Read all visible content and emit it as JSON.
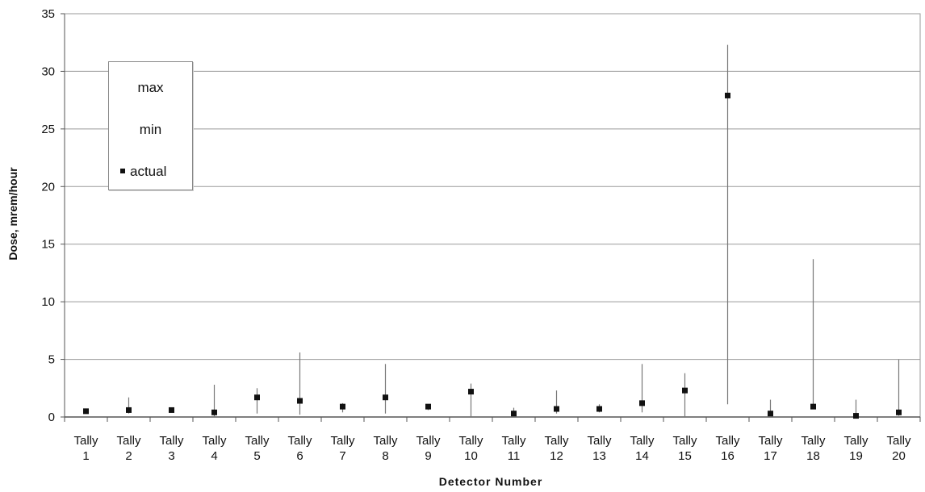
{
  "chart_data": {
    "type": "scatter",
    "title": "",
    "xlabel": "Detector Number",
    "ylabel": "Dose, mrem/hour",
    "ylim": [
      0,
      35
    ],
    "yticks": [
      0,
      5,
      10,
      15,
      20,
      25,
      30,
      35
    ],
    "grid": true,
    "legend_position": "top-left",
    "categories": [
      {
        "line1": "Tally",
        "line2": "1"
      },
      {
        "line1": "Tally",
        "line2": "2"
      },
      {
        "line1": "Tally",
        "line2": "3"
      },
      {
        "line1": "Tally",
        "line2": "4"
      },
      {
        "line1": "Tally",
        "line2": "5"
      },
      {
        "line1": "Tally",
        "line2": "6"
      },
      {
        "line1": "Tally",
        "line2": "7"
      },
      {
        "line1": "Tally",
        "line2": "8"
      },
      {
        "line1": "Tally",
        "line2": "9"
      },
      {
        "line1": "Tally",
        "line2": "10"
      },
      {
        "line1": "Tally",
        "line2": "11"
      },
      {
        "line1": "Tally",
        "line2": "12"
      },
      {
        "line1": "Tally",
        "line2": "13"
      },
      {
        "line1": "Tally",
        "line2": "14"
      },
      {
        "line1": "Tally",
        "line2": "15"
      },
      {
        "line1": "Tally",
        "line2": "16"
      },
      {
        "line1": "Tally",
        "line2": "17"
      },
      {
        "line1": "Tally",
        "line2": "18"
      },
      {
        "line1": "Tally",
        "line2": "19"
      },
      {
        "line1": "Tally",
        "line2": "20"
      }
    ],
    "series": [
      {
        "name": "max",
        "values": [
          0.6,
          1.7,
          0.8,
          2.8,
          2.5,
          5.6,
          1.2,
          4.6,
          1.1,
          2.9,
          0.8,
          2.3,
          1.1,
          4.6,
          3.8,
          32.3,
          1.5,
          13.7,
          1.5,
          5.0
        ]
      },
      {
        "name": "min",
        "values": [
          0.4,
          0.3,
          0.4,
          0.0,
          0.3,
          0.2,
          0.4,
          0.3,
          0.6,
          0.0,
          0.1,
          0.3,
          0.4,
          0.4,
          0.0,
          1.1,
          0.0,
          0.9,
          0.0,
          0.1
        ]
      },
      {
        "name": "actual",
        "values": [
          0.5,
          0.6,
          0.6,
          0.4,
          1.7,
          1.4,
          0.9,
          1.7,
          0.9,
          2.2,
          0.3,
          0.7,
          0.7,
          1.2,
          2.3,
          27.9,
          0.3,
          0.9,
          0.1,
          0.4
        ]
      }
    ],
    "colors": {
      "grid": "#9a9a9a",
      "axis": "#555555",
      "range_line": "#777777",
      "marker": "#111111"
    }
  },
  "legend": {
    "max_label": "max",
    "min_label": "min",
    "actual_label": "actual"
  }
}
